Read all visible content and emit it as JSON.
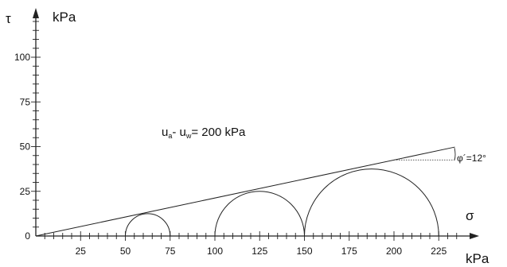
{
  "diagram": {
    "y_axis": {
      "symbol": "τ",
      "unit": "kPa",
      "ticks": [
        0,
        25,
        50,
        75,
        100
      ],
      "minor_step": 5,
      "max_minor": 120
    },
    "x_axis": {
      "symbol": "σ",
      "unit": "kPa",
      "ticks": [
        25,
        50,
        75,
        100,
        125,
        150,
        175,
        200,
        225
      ],
      "minor_step": 5,
      "max_minor": 235
    },
    "annotation": {
      "u_a": "u",
      "sub_a": "a",
      "dash": "- ",
      "u_w": "u",
      "sub_w": "w",
      "rest": "= 200 kPa"
    },
    "friction_angle_label": "φ´=12°",
    "mohr_circles": [
      {
        "sigma3": 50,
        "sigma1": 75
      },
      {
        "sigma3": 100,
        "sigma1": 150
      },
      {
        "sigma3": 150,
        "sigma1": 225
      }
    ],
    "failure_envelope": {
      "intercept": 0,
      "slope": 0.2126,
      "sigma_end": 234
    },
    "colors": {
      "line": "#222222",
      "dotted": "#444444"
    }
  }
}
